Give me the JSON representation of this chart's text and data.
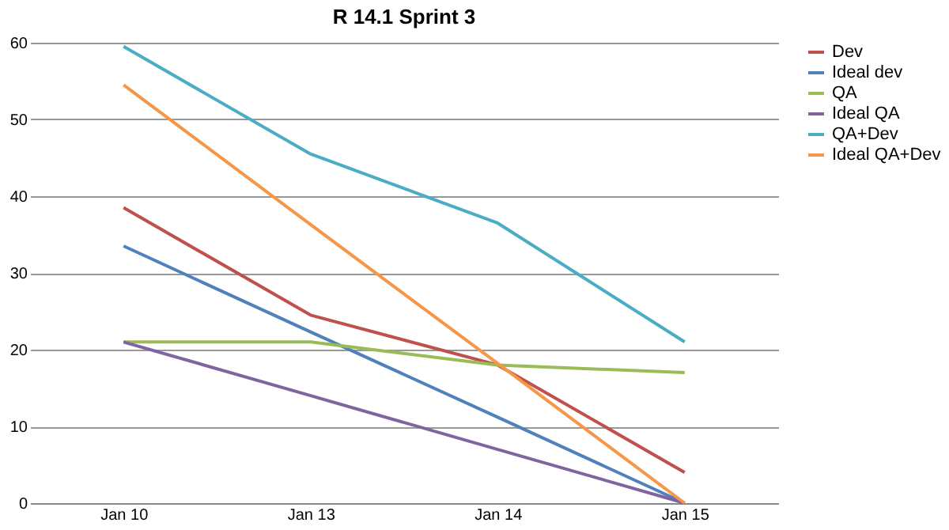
{
  "chart_data": {
    "type": "line",
    "title": "R 14.1 Sprint 3",
    "categories": [
      "Jan 10",
      "Jan 13",
      "Jan 14",
      "Jan 15"
    ],
    "series": [
      {
        "name": "Dev",
        "color": "#c0504d",
        "values": [
          38.5,
          24.5,
          18,
          4
        ]
      },
      {
        "name": "Ideal dev",
        "color": "#4f81bd",
        "values": [
          33.5,
          22.3,
          11.2,
          0
        ]
      },
      {
        "name": "QA",
        "color": "#9bbb59",
        "values": [
          21,
          21,
          18,
          17
        ]
      },
      {
        "name": "Ideal QA",
        "color": "#8064a2",
        "values": [
          21,
          14,
          7,
          0
        ]
      },
      {
        "name": "QA+Dev",
        "color": "#4bacc6",
        "values": [
          59.5,
          45.5,
          36.5,
          21
        ]
      },
      {
        "name": "Ideal QA+Dev",
        "color": "#f79646",
        "values": [
          54.5,
          36.3,
          18.2,
          0
        ]
      }
    ],
    "ylim": [
      0,
      60
    ],
    "yticks": [
      0,
      10,
      20,
      30,
      40,
      50,
      60
    ],
    "grid": "y",
    "legend": "right",
    "marker": "none",
    "line_style": "solid"
  }
}
